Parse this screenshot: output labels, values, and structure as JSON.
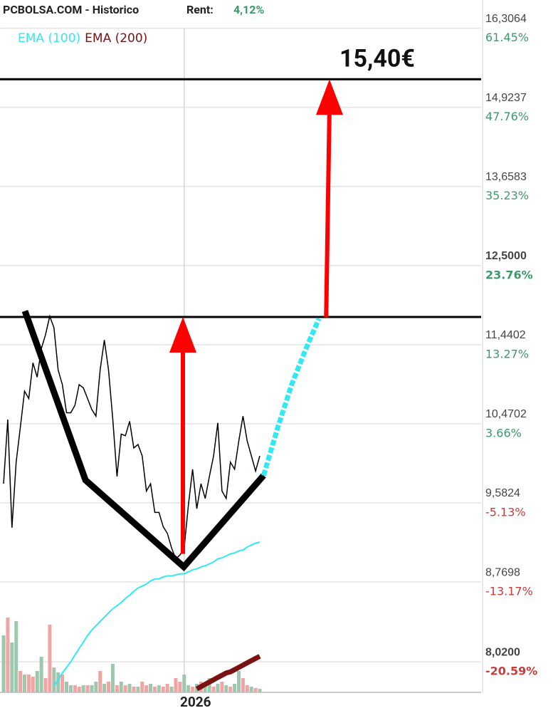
{
  "chart_data": {
    "type": "line",
    "title": "PCBOLSA.COM - Historico",
    "rent_label": "Rent:",
    "rent": {
      "value": 4.12,
      "label": "4,12%"
    },
    "log_scale": true,
    "grid": true,
    "xlim": [
      -0.85,
      113.7
    ],
    "xticks": [
      {
        "value": 43,
        "label": "2026"
      }
    ],
    "ylim": [
      7.75,
      16.83
    ],
    "yticks": [
      {
        "value": 16.3064,
        "label": "16,3064"
      },
      {
        "value": 14.9237,
        "label": "14,9237"
      },
      {
        "value": 13.6583,
        "label": "13,6583"
      },
      {
        "value": 12.5,
        "label": "12,5000"
      },
      {
        "value": 11.4402,
        "label": "11,4402"
      },
      {
        "value": 10.4702,
        "label": "10,4702"
      },
      {
        "value": 9.5824,
        "label": "9,5824"
      },
      {
        "value": 8.7698,
        "label": "8,7698"
      },
      {
        "value": 8.02,
        "label": "8,0200"
      }
    ],
    "bold_yticks": [
      3,
      8
    ],
    "y2lim": [
      -23.27,
      66.63
    ],
    "y2ticks": [
      {
        "value": 61.45,
        "label": "61.45%"
      },
      {
        "value": 47.76,
        "label": "47.76%"
      },
      {
        "value": 35.23,
        "label": "35.23%"
      },
      {
        "value": 23.76,
        "label": "23.76%"
      },
      {
        "value": 13.27,
        "label": "13.27%"
      },
      {
        "value": 3.66,
        "label": "3.66%"
      },
      {
        "value": -5.13,
        "label": "-5.13%"
      },
      {
        "value": -13.17,
        "label": "-13.17%"
      },
      {
        "value": -20.59,
        "label": "-20.59%"
      }
    ],
    "price": {
      "color": "#000000",
      "values": [
        9.79,
        10.52,
        9.32,
        10.03,
        10.43,
        10.86,
        10.77,
        11.21,
        11.03,
        11.39,
        11.57,
        11.81,
        11.66,
        11.12,
        10.94,
        10.6,
        10.6,
        10.69,
        10.94,
        10.9,
        10.77,
        10.64,
        10.56,
        11.12,
        11.5,
        11.12,
        10.52,
        9.87,
        10.35,
        10.33,
        10.5,
        10.19,
        10.23,
        10.1,
        9.71,
        9.79,
        9.48,
        9.48,
        9.33,
        9.26,
        9.11,
        9.0,
        9.04,
        9.11,
        9.56,
        9.95,
        9.52,
        9.79,
        9.63,
        9.87,
        10.1,
        10.48,
        9.71,
        9.63,
        10.03,
        9.95,
        10.27,
        10.56,
        10.27,
        10.1,
        9.93,
        10.1
      ]
    },
    "series": [
      {
        "name": "EMA (100)",
        "color": "#33e8f2",
        "values": [
          null,
          null,
          null,
          null,
          null,
          null,
          null,
          null,
          null,
          null,
          null,
          null,
          7.8,
          7.86,
          7.92,
          7.97,
          8.02,
          8.08,
          8.14,
          8.2,
          8.26,
          8.31,
          8.35,
          8.39,
          8.43,
          8.47,
          8.51,
          8.54,
          8.57,
          8.61,
          8.64,
          8.68,
          8.71,
          8.73,
          8.75,
          8.78,
          8.8,
          8.8,
          8.82,
          8.83,
          8.83,
          8.84,
          8.85,
          8.85,
          8.87,
          8.89,
          8.9,
          8.92,
          8.93,
          8.95,
          8.97,
          9.0,
          9.01,
          9.03,
          9.05,
          9.06,
          9.08,
          9.09,
          9.12,
          9.14,
          9.16,
          9.17
        ]
      },
      {
        "name": "EMA (200)",
        "color": "#7a1212",
        "values": [
          null,
          null,
          null,
          null,
          null,
          null,
          null,
          null,
          null,
          null,
          null,
          null,
          null,
          null,
          null,
          null,
          null,
          null,
          null,
          null,
          null,
          null,
          null,
          null,
          null,
          null,
          null,
          null,
          null,
          null,
          null,
          null,
          null,
          null,
          null,
          null,
          null,
          null,
          null,
          null,
          null,
          null,
          null,
          null,
          null,
          null,
          7.78,
          7.8,
          7.82,
          7.84,
          7.86,
          7.88,
          7.9,
          7.92,
          7.93,
          7.95,
          7.97,
          7.99,
          8.01,
          8.03,
          8.05,
          8.07
        ]
      }
    ],
    "volume": {
      "ylim": [
        0,
        200
      ],
      "values": [
        80,
        105,
        70,
        100,
        30,
        25,
        25,
        22,
        30,
        50,
        20,
        95,
        35,
        28,
        25,
        15,
        10,
        10,
        8,
        10,
        10,
        10,
        15,
        30,
        12,
        15,
        40,
        10,
        15,
        10,
        12,
        8,
        8,
        15,
        10,
        12,
        8,
        10,
        8,
        12,
        8,
        20,
        15,
        25,
        10,
        8,
        12,
        15,
        10,
        20,
        8,
        12,
        15,
        10,
        8,
        12,
        30,
        20,
        10,
        8,
        6,
        5
      ],
      "colors": [
        "#9fc7ae",
        "#f0a4a4",
        "#9fc7ae",
        "#9fc7ae",
        "#f0a4a4",
        "#9fc7ae",
        "#f0a4a4",
        "#f0a4a4",
        "#9fc7ae",
        "#9fc7ae",
        "#f0a4a4",
        "#f0a4a4",
        "#9fc7ae",
        "#9fc7ae",
        "#f0a4a4",
        "#9fc7ae",
        "#9fc7ae",
        "#f0a4a4",
        "#f0a4a4",
        "#9fc7ae",
        "#f0a4a4",
        "#9fc7ae",
        "#9fc7ae",
        "#f0a4a4",
        "#9fc7ae",
        "#f0a4a4",
        "#9fc7ae",
        "#f0a4a4",
        "#9fc7ae",
        "#f0a4a4",
        "#9fc7ae",
        "#f0a4a4",
        "#9fc7ae",
        "#f0a4a4",
        "#f0a4a4",
        "#9fc7ae",
        "#f0a4a4",
        "#9fc7ae",
        "#f0a4a4",
        "#f0a4a4",
        "#9fc7ae",
        "#f0a4a4",
        "#f0a4a4",
        "#9fc7ae",
        "#9fc7ae",
        "#f0a4a4",
        "#9fc7ae",
        "#f0a4a4",
        "#9fc7ae",
        "#9fc7ae",
        "#f0a4a4",
        "#9fc7ae",
        "#f0a4a4",
        "#9fc7ae",
        "#f0a4a4",
        "#9fc7ae",
        "#9fc7ae",
        "#f0a4a4",
        "#f0a4a4",
        "#9fc7ae",
        "#f0a4a4",
        "#9fc7ae"
      ]
    },
    "neckline": 11.8,
    "target": {
      "value": 15.4,
      "label": "15,40€"
    },
    "pattern": {
      "color": "#000000",
      "x": [
        5.08,
        19.5,
        42.9,
        61.9
      ],
      "values": [
        11.88,
        9.83,
        8.92,
        9.88
      ]
    },
    "projection": {
      "color": "#33e8f2",
      "x": [
        61.9,
        65.3,
        68.6,
        72.0,
        75.1
      ],
      "values": [
        9.88,
        10.43,
        10.94,
        11.39,
        11.78
      ]
    },
    "arrows": {
      "color": "#ff0000",
      "items": [
        {
          "x": [
            42.7,
            42.7
          ],
          "values": [
            9.05,
            11.8
          ]
        },
        {
          "x": [
            76.8,
            77.6
          ],
          "values": [
            11.8,
            15.4
          ]
        }
      ]
    }
  }
}
